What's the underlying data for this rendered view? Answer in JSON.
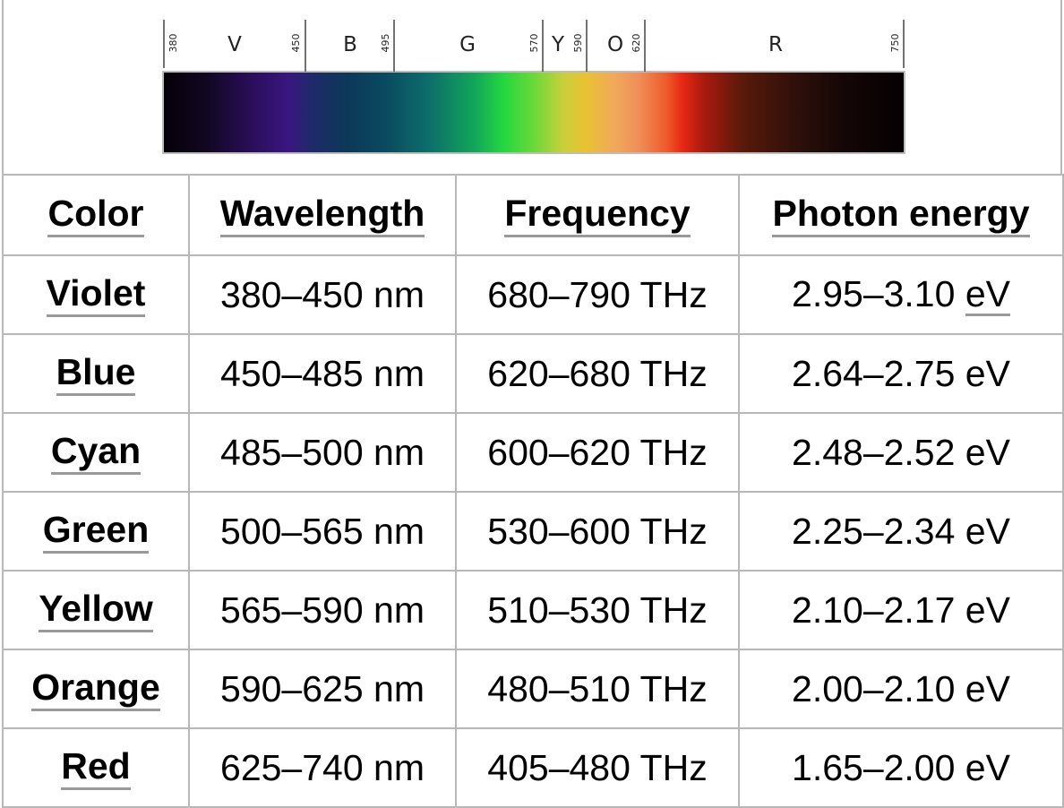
{
  "spectrum": {
    "band_letters": [
      "V",
      "B",
      "G",
      "Y",
      "O",
      "R"
    ],
    "tick_labels": [
      "380",
      "450",
      "495",
      "570",
      "590",
      "620",
      "750"
    ]
  },
  "table": {
    "headers": [
      "Color",
      "Wavelength",
      "Frequency",
      "Photon energy"
    ],
    "rows": [
      {
        "color": "Violet",
        "wavelength": "380–450 nm",
        "frequency": "680–790 THz",
        "energy": "2.95–3.10",
        "energy_unit": "eV"
      },
      {
        "color": "Blue",
        "wavelength": "450–485 nm",
        "frequency": "620–680 THz",
        "energy": "2.64–2.75 eV"
      },
      {
        "color": "Cyan",
        "wavelength": "485–500 nm",
        "frequency": "600–620 THz",
        "energy": "2.48–2.52 eV"
      },
      {
        "color": "Green",
        "wavelength": "500–565 nm",
        "frequency": "530–600 THz",
        "energy": "2.25–2.34 eV"
      },
      {
        "color": "Yellow",
        "wavelength": "565–590 nm",
        "frequency": "510–530 THz",
        "energy": "2.10–2.17 eV"
      },
      {
        "color": "Orange",
        "wavelength": "590–625 nm",
        "frequency": "480–510 THz",
        "energy": "2.00–2.10 eV"
      },
      {
        "color": "Red",
        "wavelength": "625–740 nm",
        "frequency": "405–480 THz",
        "energy": "1.65–2.00 eV"
      }
    ]
  }
}
